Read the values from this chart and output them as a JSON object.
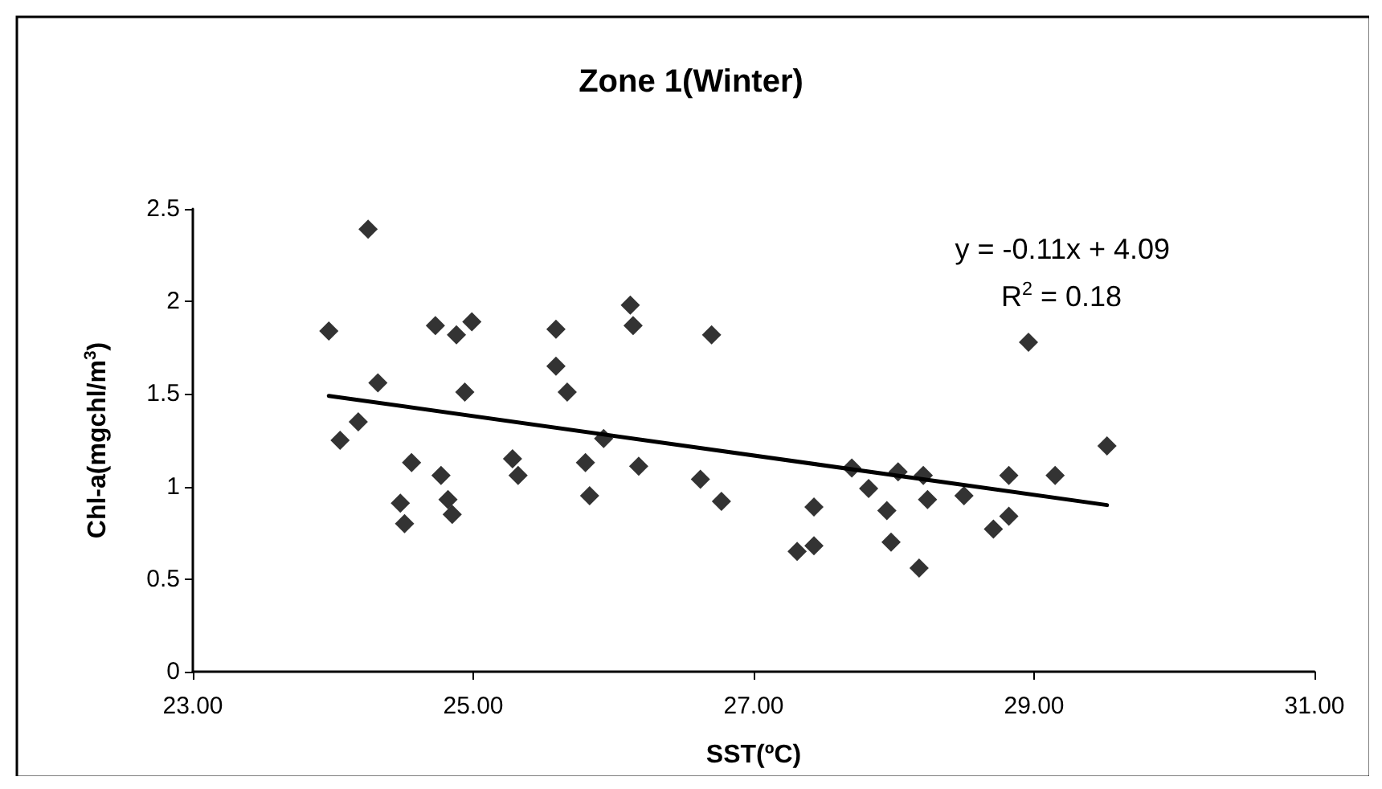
{
  "chart_data": {
    "type": "scatter",
    "title": "Zone 1(Winter)",
    "xlabel": "SST(ºC)",
    "ylabel": "Chl-a(mgchl/m$^{3}$)",
    "annotations": [
      "y = -0.11x + 4.09",
      "R$^{2}$ = 0.18"
    ],
    "marker": "diamond",
    "grid": false,
    "xlim": [
      23,
      31
    ],
    "xticks": [
      {
        "value": 23,
        "label": "23.00"
      },
      {
        "value": 25,
        "label": "25.00"
      },
      {
        "value": 27,
        "label": "27.00"
      },
      {
        "value": 29,
        "label": "29.00"
      },
      {
        "value": 31,
        "label": "31.00"
      }
    ],
    "ylim": [
      0,
      2.5
    ],
    "yticks": [
      0,
      0.5,
      1,
      1.5,
      2,
      2.5
    ],
    "series": [
      {
        "color": "#000000",
        "x": [
          23.97,
          24.25,
          24.05,
          24.18,
          24.32,
          24.56,
          24.48,
          24.51,
          24.73,
          24.77,
          24.82,
          24.85,
          24.88,
          24.99,
          24.94,
          25.28,
          25.32,
          25.59,
          25.59,
          25.67,
          25.8,
          25.83,
          25.93,
          26.12,
          26.14,
          26.18,
          26.62,
          26.7,
          26.77,
          27.31,
          27.43,
          27.43,
          27.7,
          27.82,
          27.95,
          27.98,
          28.03,
          28.21,
          28.24,
          28.18,
          28.5,
          28.71,
          28.82,
          28.82,
          28.96,
          29.15,
          29.52
        ],
        "values": [
          1.84,
          2.39,
          1.25,
          1.35,
          1.56,
          1.13,
          0.91,
          0.8,
          1.87,
          1.06,
          0.93,
          0.85,
          1.82,
          1.89,
          1.51,
          1.15,
          1.06,
          1.85,
          1.65,
          1.51,
          1.13,
          0.95,
          1.26,
          1.98,
          1.87,
          1.11,
          1.04,
          1.82,
          0.92,
          0.65,
          0.68,
          0.89,
          1.1,
          0.99,
          0.87,
          0.7,
          1.08,
          1.06,
          0.93,
          0.56,
          0.95,
          0.77,
          0.84,
          1.06,
          1.78,
          1.06,
          1.22
        ]
      },
      {
        "type": "line",
        "color": "#000000",
        "x": [
          23.97,
          29.52
        ],
        "values": [
          1.49,
          0.9
        ],
        "marker": "none"
      }
    ]
  }
}
